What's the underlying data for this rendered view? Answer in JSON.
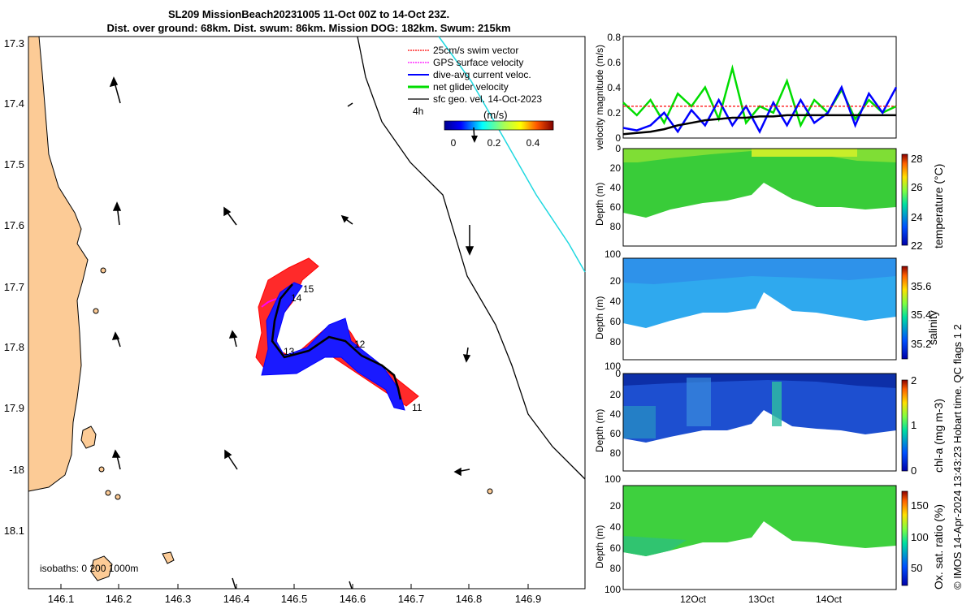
{
  "title": {
    "line1": "SL209 MissionBeach20231005 11-Oct 00Z to 14-Oct 23Z.",
    "line2": "Dist. over ground: 68km. Dist. swum: 86km. Mission DOG: 182km. Swum: 215km"
  },
  "map": {
    "lon_ticks": [
      "146.1",
      "146.2",
      "146.3",
      "146.4",
      "146.5",
      "146.6",
      "146.7",
      "146.8",
      "146.9"
    ],
    "lat_ticks": [
      "17.3",
      "17.4",
      "17.5",
      "17.6",
      "17.7",
      "17.8",
      "17.9",
      "-18",
      "18.1"
    ],
    "legend": [
      {
        "label": "25cm/s swim vector",
        "color": "#ff0000"
      },
      {
        "label": "GPS surface velocity",
        "color": "#ff00ff"
      },
      {
        "label": "dive-avg current veloc.",
        "color": "#0000ff"
      },
      {
        "label": "net glider velocity",
        "color": "#00dd00"
      },
      {
        "label": "sfc geo. vel. 14-Oct-2023",
        "color": "#000000"
      }
    ],
    "scale_label": "4h",
    "colorbar": {
      "label": "(m/s)",
      "ticks": [
        "0",
        "0.2",
        "0.4"
      ]
    },
    "isobaths_label": "isobaths: 0  200  1000m",
    "day_labels": [
      "11",
      "12",
      "13",
      "14",
      "15"
    ]
  },
  "chart_data": [
    {
      "type": "line",
      "ylabel": "velocity magnitude (m/s)",
      "ylim": [
        0,
        0.8
      ],
      "yticks": [
        "0",
        "0.2",
        "0.4",
        "0.6",
        "0.8"
      ],
      "x": [
        11.0,
        11.2,
        11.4,
        11.6,
        11.8,
        12.0,
        12.2,
        12.4,
        12.6,
        12.8,
        13.0,
        13.2,
        13.4,
        13.6,
        13.8,
        14.0,
        14.2,
        14.4,
        14.6,
        14.8,
        15.0
      ],
      "series": [
        {
          "color": "#00dd00",
          "values": [
            0.28,
            0.18,
            0.3,
            0.12,
            0.35,
            0.25,
            0.4,
            0.15,
            0.55,
            0.12,
            0.25,
            0.2,
            0.45,
            0.1,
            0.3,
            0.2,
            0.38,
            0.15,
            0.3,
            0.2,
            0.25
          ]
        },
        {
          "color": "#0000ff",
          "values": [
            0.08,
            0.06,
            0.1,
            0.2,
            0.05,
            0.22,
            0.1,
            0.3,
            0.1,
            0.25,
            0.05,
            0.28,
            0.1,
            0.3,
            0.12,
            0.2,
            0.4,
            0.1,
            0.35,
            0.2,
            0.4
          ]
        },
        {
          "color": "#000000",
          "values": [
            0.03,
            0.04,
            0.05,
            0.07,
            0.1,
            0.12,
            0.14,
            0.15,
            0.16,
            0.16,
            0.17,
            0.17,
            0.18,
            0.18,
            0.18,
            0.18,
            0.18,
            0.18,
            0.18,
            0.18,
            0.18
          ]
        },
        {
          "color": "#ff0000",
          "dashed": true,
          "values": [
            0.25,
            0.25,
            0.25,
            0.25,
            0.25,
            0.25,
            0.25,
            0.25,
            0.25,
            0.25,
            0.25,
            0.25,
            0.25,
            0.25,
            0.25,
            0.25,
            0.25,
            0.25,
            0.25,
            0.25,
            0.25
          ]
        }
      ]
    },
    {
      "type": "heatmap",
      "ylabel": "Depth (m)",
      "yticks": [
        "0",
        "20",
        "40",
        "60",
        "80",
        "100"
      ],
      "colorbar_label": "temperature (°C)",
      "colorbar_ticks": [
        "28",
        "26",
        "24",
        "22"
      ]
    },
    {
      "type": "heatmap",
      "ylabel": "Depth (m)",
      "yticks": [
        "0",
        "20",
        "40",
        "60",
        "80",
        "100"
      ],
      "colorbar_label": "salinity",
      "colorbar_ticks": [
        "35.6",
        "35.4",
        "35.2"
      ]
    },
    {
      "type": "heatmap",
      "ylabel": "Depth (m)",
      "yticks": [
        "0",
        "20",
        "40",
        "60",
        "80",
        "100"
      ],
      "colorbar_label": "chl-a (mg m-3)",
      "colorbar_ticks": [
        "2",
        "1",
        "0"
      ]
    },
    {
      "type": "heatmap",
      "ylabel": "Depth (m)",
      "yticks": [
        "0",
        "20",
        "40",
        "60",
        "80",
        "100"
      ],
      "colorbar_label": "Ox. sat. ratio (%)",
      "colorbar_ticks": [
        "150",
        "100",
        "50"
      ],
      "xticks": [
        "12Oct",
        "13Oct",
        "14Oct"
      ]
    }
  ],
  "footer": "© IMOS 14-Apr-2024 13:43:23 Hobart time. QC flags 1  2"
}
